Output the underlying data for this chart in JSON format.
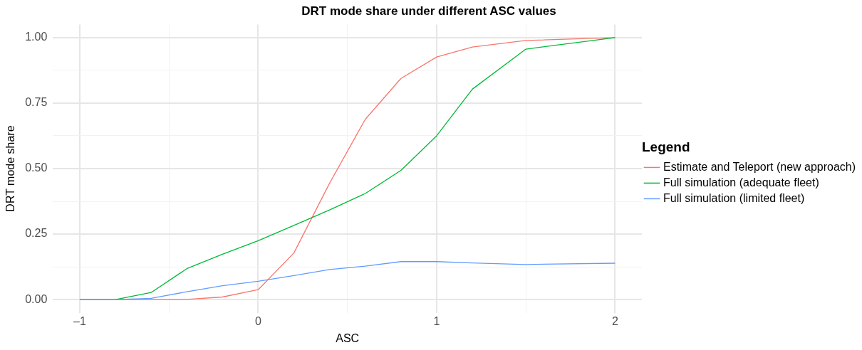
{
  "chart_data": {
    "type": "line",
    "title": "DRT mode share under different ASC values",
    "xlabel": "ASC",
    "ylabel": "DRT mode share",
    "legend_title": "Legend",
    "legend": "right",
    "grid": true,
    "marker": "none",
    "line_style": "solid",
    "xlim": [
      -1.15,
      2.15
    ],
    "xticks": [
      {
        "value": -1,
        "label": "–1"
      },
      {
        "value": -0.5,
        "label": null
      },
      0,
      {
        "value": 0.5,
        "label": null
      },
      1,
      {
        "value": 1.5,
        "label": null
      },
      2
    ],
    "ylim": [
      -0.05,
      1.05
    ],
    "yticks": [
      {
        "value": 0,
        "label": "0.00"
      },
      {
        "value": 0.125,
        "label": null
      },
      {
        "value": 0.25,
        "label": "0.25"
      },
      {
        "value": 0.375,
        "label": null
      },
      {
        "value": 0.5,
        "label": "0.50"
      },
      {
        "value": 0.625,
        "label": null
      },
      {
        "value": 0.75,
        "label": "0.75"
      },
      {
        "value": 0.875,
        "label": null
      },
      {
        "value": 1,
        "label": "1.00"
      }
    ],
    "x": [
      -1,
      -0.8,
      -0.6,
      -0.4,
      -0.2,
      0,
      0.2,
      0.4,
      0.6,
      0.8,
      1,
      1.2,
      1.5,
      2
    ],
    "series": [
      {
        "name": "Estimate and Teleport (new approach)",
        "color": "#f8766d",
        "values": [
          null,
          0,
          0,
          0.001,
          0.01,
          0.038,
          0.178,
          0.444,
          0.688,
          0.844,
          0.926,
          0.964,
          0.989,
          1.0
        ]
      },
      {
        "name": "Full simulation (adequate fleet)",
        "color": "#00ba38",
        "values": [
          0,
          0,
          0.027,
          0.118,
          0.173,
          0.225,
          0.283,
          0.342,
          0.405,
          0.493,
          0.625,
          0.803,
          0.956,
          1.0
        ]
      },
      {
        "name": "Full simulation (limited fleet)",
        "color": "#619cff",
        "values": [
          0,
          0,
          0.005,
          0.03,
          0.053,
          0.07,
          0.092,
          0.115,
          0.128,
          0.145,
          0.145,
          0.14,
          0.134,
          0.139
        ]
      }
    ]
  }
}
